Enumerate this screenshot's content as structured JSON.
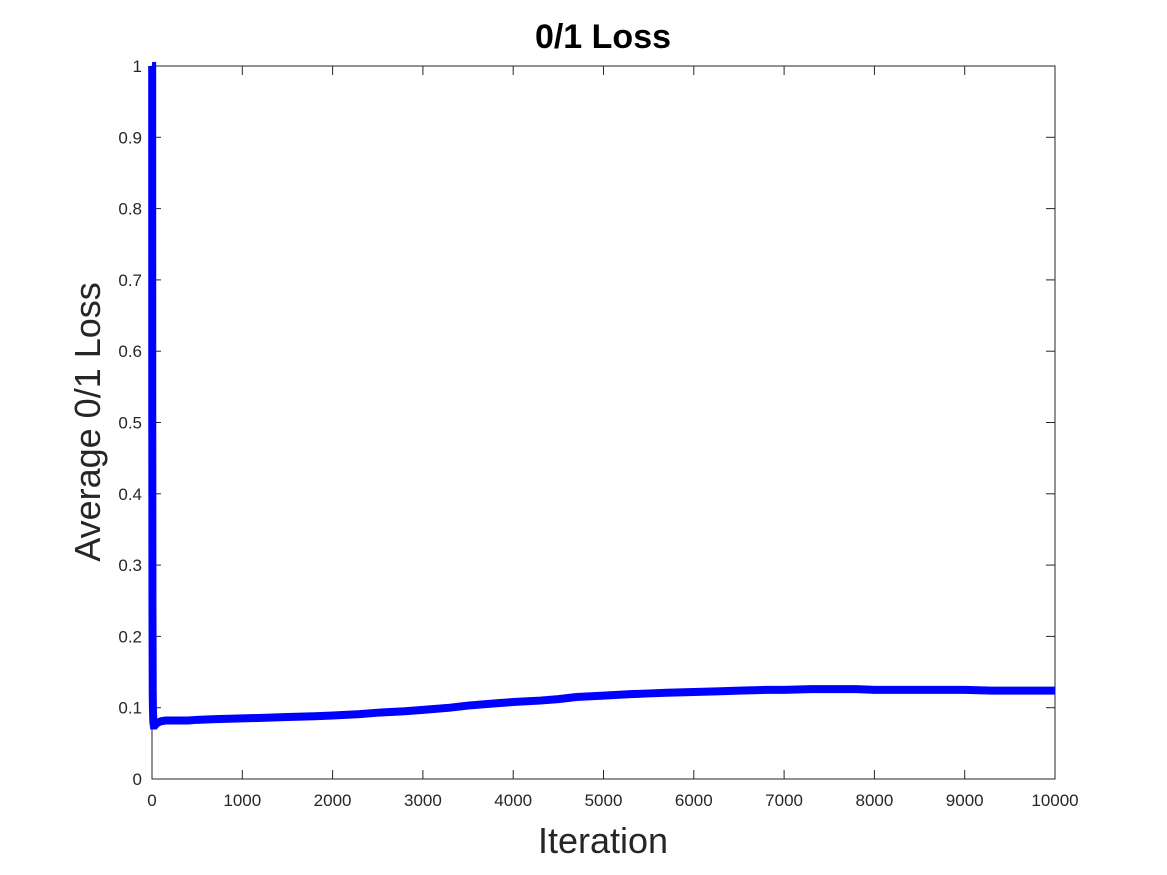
{
  "chart_data": {
    "type": "line",
    "title": "0/1 Loss",
    "xlabel": "Iteration",
    "ylabel": "Average 0/1 Loss",
    "xlim": [
      0,
      10000
    ],
    "ylim": [
      0,
      1
    ],
    "xticks": [
      0,
      1000,
      2000,
      3000,
      4000,
      5000,
      6000,
      7000,
      8000,
      9000,
      10000
    ],
    "yticks": [
      0,
      0.1,
      0.2,
      0.3,
      0.4,
      0.5,
      0.6,
      0.7,
      0.8,
      0.9,
      1
    ],
    "xtick_labels": [
      "0",
      "1000",
      "2000",
      "3000",
      "4000",
      "5000",
      "6000",
      "7000",
      "8000",
      "9000",
      "10000"
    ],
    "ytick_labels": [
      "0",
      "0.1",
      "0.2",
      "0.3",
      "0.4",
      "0.5",
      "0.6",
      "0.7",
      "0.8",
      "0.9",
      "1"
    ],
    "grid": false,
    "legend": "none",
    "series": [
      {
        "color": "#0000ff",
        "x": [
          1,
          2,
          3,
          5,
          8,
          10,
          15,
          20,
          30,
          50,
          80,
          100,
          150,
          200,
          300,
          400,
          500,
          700,
          1000,
          1300,
          1500,
          1800,
          2000,
          2300,
          2500,
          2800,
          3000,
          3300,
          3500,
          3800,
          4000,
          4300,
          4500,
          4700,
          5000,
          5300,
          5500,
          5700,
          6000,
          6300,
          6500,
          6800,
          7000,
          7300,
          7500,
          7800,
          8000,
          8300,
          8500,
          8800,
          9000,
          9300,
          9500,
          9800,
          10000
        ],
        "y": [
          1.0,
          1.0,
          0.5,
          0.25,
          0.125,
          0.1,
          0.08,
          0.075,
          0.075,
          0.078,
          0.08,
          0.081,
          0.082,
          0.082,
          0.082,
          0.082,
          0.083,
          0.084,
          0.085,
          0.086,
          0.087,
          0.088,
          0.089,
          0.091,
          0.093,
          0.095,
          0.097,
          0.1,
          0.103,
          0.106,
          0.108,
          0.11,
          0.112,
          0.115,
          0.117,
          0.119,
          0.12,
          0.121,
          0.122,
          0.123,
          0.124,
          0.125,
          0.125,
          0.126,
          0.126,
          0.126,
          0.125,
          0.125,
          0.125,
          0.125,
          0.125,
          0.124,
          0.124,
          0.124,
          0.124
        ]
      }
    ]
  }
}
